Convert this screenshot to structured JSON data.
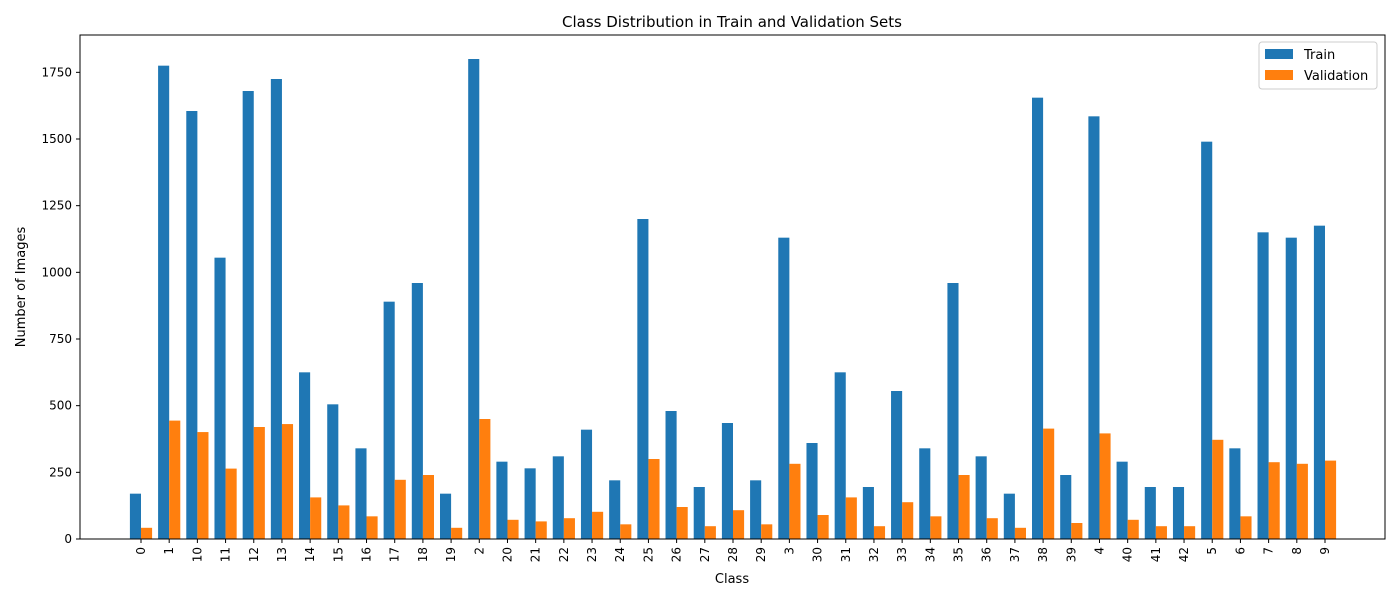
{
  "chart_data": {
    "type": "bar",
    "title": "Class Distribution in Train and Validation Sets",
    "xlabel": "Class",
    "ylabel": "Number of Images",
    "ylim": [
      0,
      1890
    ],
    "yticks": [
      0,
      250,
      500,
      750,
      1000,
      1250,
      1500,
      1750
    ],
    "ytick_labels": [
      "0",
      "250",
      "500",
      "750",
      "1000",
      "1250",
      "1500",
      "1750"
    ],
    "grid": false,
    "legend_position": "top-right",
    "categories": [
      "0",
      "1",
      "10",
      "11",
      "12",
      "13",
      "14",
      "15",
      "16",
      "17",
      "18",
      "19",
      "2",
      "20",
      "21",
      "22",
      "23",
      "24",
      "25",
      "26",
      "27",
      "28",
      "29",
      "3",
      "30",
      "31",
      "32",
      "33",
      "34",
      "35",
      "36",
      "37",
      "38",
      "39",
      "4",
      "40",
      "41",
      "42",
      "5",
      "6",
      "7",
      "8",
      "9"
    ],
    "series": [
      {
        "name": "Train",
        "color": "#1f77b4",
        "values": [
          170,
          1775,
          1605,
          1055,
          1680,
          1725,
          625,
          505,
          340,
          890,
          960,
          170,
          1800,
          290,
          265,
          310,
          410,
          220,
          1200,
          480,
          195,
          435,
          220,
          1130,
          360,
          625,
          195,
          555,
          340,
          960,
          310,
          170,
          1655,
          240,
          1585,
          290,
          195,
          195,
          1490,
          340,
          1150,
          1130,
          1175
        ]
      },
      {
        "name": "Validation",
        "color": "#ff7f0e",
        "values": [
          42,
          444,
          401,
          264,
          420,
          431,
          156,
          126,
          85,
          222,
          240,
          42,
          450,
          72,
          66,
          78,
          102,
          55,
          300,
          120,
          48,
          108,
          55,
          282,
          90,
          156,
          48,
          138,
          85,
          240,
          78,
          42,
          414,
          60,
          396,
          72,
          48,
          48,
          372,
          85,
          288,
          282,
          294
        ]
      }
    ]
  }
}
